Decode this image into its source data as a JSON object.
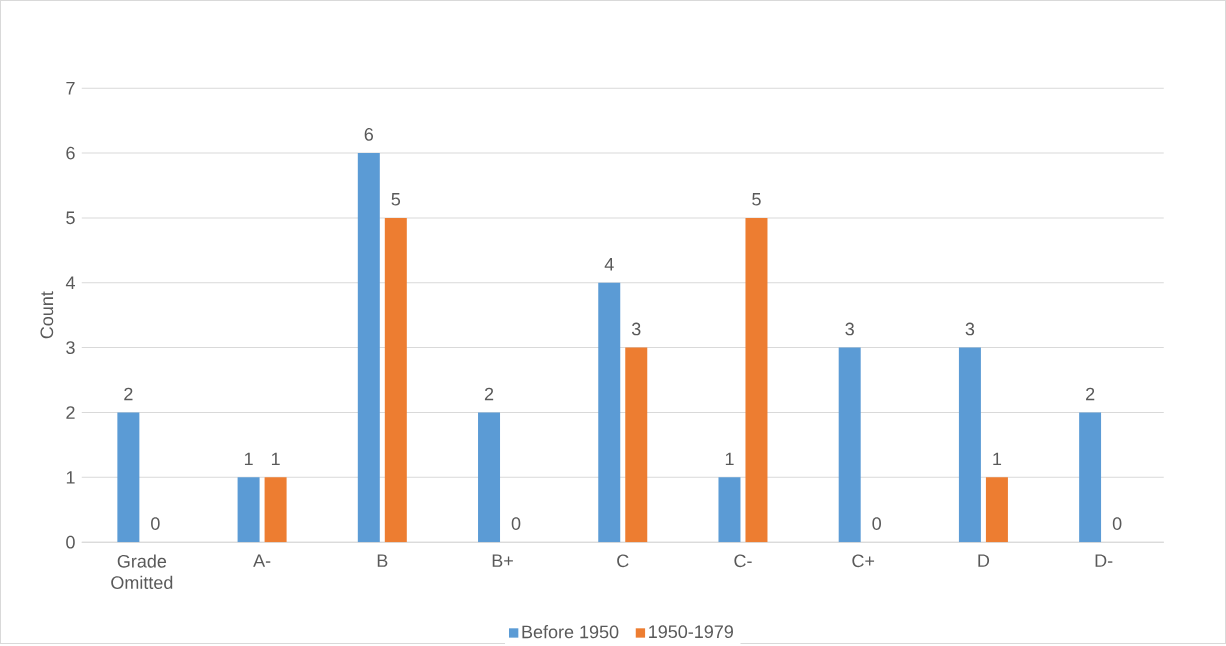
{
  "chart_data": {
    "type": "bar",
    "ylabel": "Count",
    "categories": [
      "Grade Omitted",
      "A-",
      "B",
      "B+",
      "C",
      "C-",
      "C+",
      "D",
      "D-"
    ],
    "series": [
      {
        "name": "Before 1950",
        "color": "#5b9bd5",
        "values": [
          2,
          1,
          6,
          2,
          4,
          1,
          3,
          3,
          2
        ]
      },
      {
        "name": "1950-1979",
        "color": "#ed7d31",
        "values": [
          0,
          1,
          5,
          0,
          3,
          5,
          0,
          1,
          0
        ]
      }
    ],
    "ylim": [
      0,
      7
    ],
    "yticks": [
      0,
      1,
      2,
      3,
      4,
      5,
      6,
      7
    ],
    "grid": "y",
    "legend": "bottom",
    "data_labels": true
  }
}
